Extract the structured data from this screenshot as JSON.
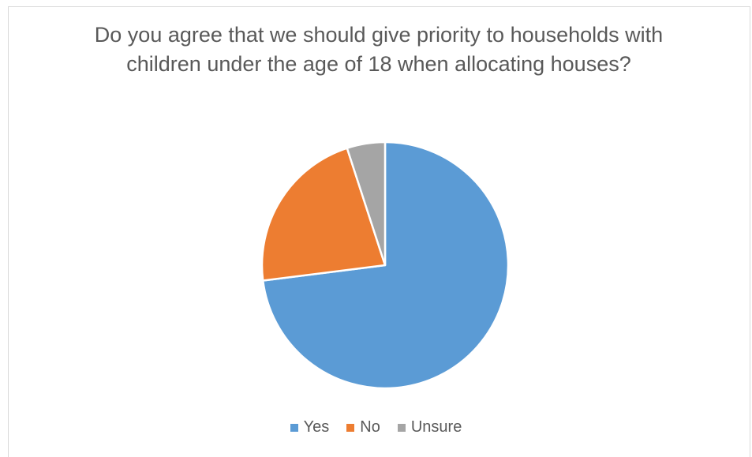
{
  "chart_data": {
    "type": "pie",
    "title": "Do you agree that we should give priority to households with children under the age of 18 when allocating houses?",
    "categories": [
      "Yes",
      "No",
      "Unsure"
    ],
    "values": [
      73,
      22,
      5
    ],
    "colors": [
      "#5b9bd5",
      "#ed7d31",
      "#a5a5a5"
    ],
    "start_angle": "12 o'clock",
    "direction": "clockwise",
    "legend_position": "bottom"
  }
}
